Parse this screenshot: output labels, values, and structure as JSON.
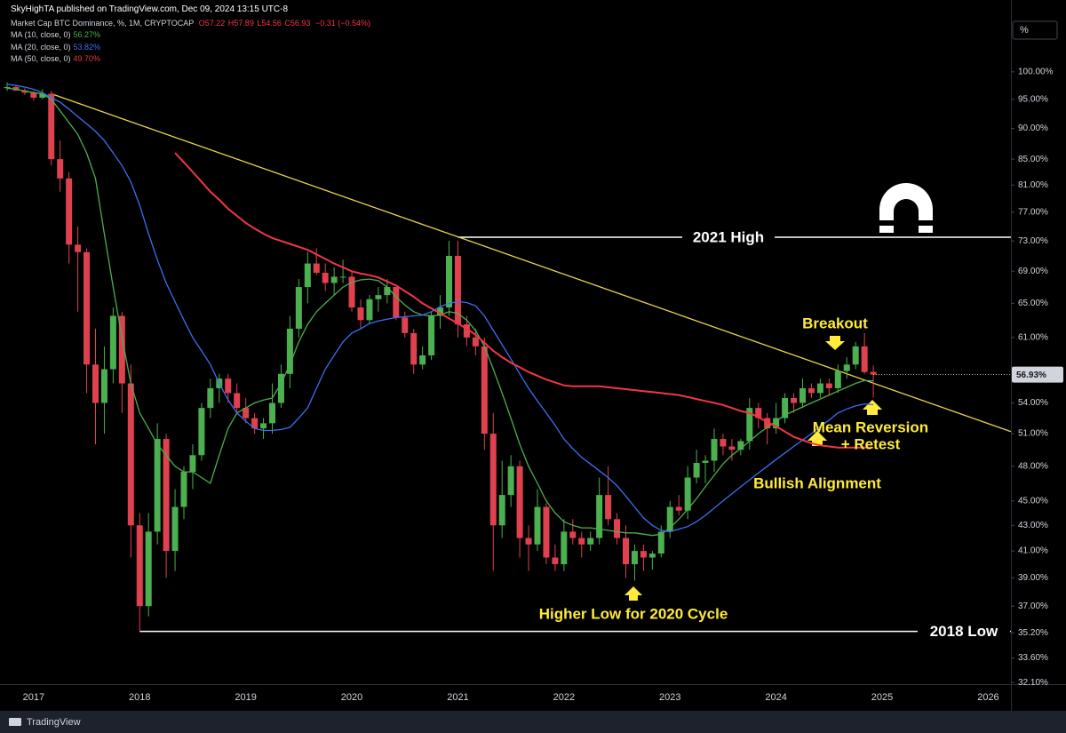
{
  "page": {
    "published_by": "SkyHighTA published on TradingView.com, Dec 09, 2024 13:15 UTC-8",
    "footer": "TradingView"
  },
  "chart_data": {
    "type": "candlestick",
    "symbol": "Market Cap BTC Dominance, %, 1M, CRYPTOCAP",
    "ohlc_labels": [
      "O57.22",
      "H57.89",
      "L54.56",
      "C56.93"
    ],
    "change_label": "−0.31 (−0.54%)",
    "axis_unit": "%",
    "last_price_label": "56.93%",
    "log_scale": true,
    "grid": false,
    "up_color": "#4caf50",
    "down_color": "#e0414f",
    "ylim": [
      32,
      111.5
    ],
    "yticks": [
      {
        "value": 32.1,
        "label": "32.10%"
      },
      {
        "value": 33.6,
        "label": "33.60%"
      },
      {
        "value": 35.2,
        "label": "35.20%"
      },
      {
        "value": 37,
        "label": "37.00%"
      },
      {
        "value": 39,
        "label": "39.00%"
      },
      {
        "value": 41,
        "label": "41.00%"
      },
      {
        "value": 43,
        "label": "43.00%"
      },
      {
        "value": 45,
        "label": "45.00%"
      },
      {
        "value": 48,
        "label": "48.00%"
      },
      {
        "value": 51,
        "label": "51.00%"
      },
      {
        "value": 54,
        "label": "54.00%"
      },
      {
        "value": 61,
        "label": "61.00%"
      },
      {
        "value": 65,
        "label": "65.00%"
      },
      {
        "value": 69,
        "label": "69.00%"
      },
      {
        "value": 73,
        "label": "73.00%"
      },
      {
        "value": 77,
        "label": "77.00%"
      },
      {
        "value": 81,
        "label": "81.00%"
      },
      {
        "value": 85,
        "label": "85.00%"
      },
      {
        "value": 90,
        "label": "90.00%"
      },
      {
        "value": 95,
        "label": "95.00%"
      },
      {
        "value": 100,
        "label": "100.00%"
      }
    ],
    "categories": [
      null,
      null,
      null,
      "2017",
      null,
      null,
      null,
      null,
      null,
      null,
      null,
      null,
      null,
      null,
      null,
      "2018",
      null,
      null,
      null,
      null,
      null,
      null,
      null,
      null,
      null,
      null,
      null,
      "2019",
      null,
      null,
      null,
      null,
      null,
      null,
      null,
      null,
      null,
      null,
      null,
      "2020",
      null,
      null,
      null,
      null,
      null,
      null,
      null,
      null,
      null,
      null,
      null,
      "2021",
      null,
      null,
      null,
      null,
      null,
      null,
      null,
      null,
      null,
      null,
      null,
      "2022",
      null,
      null,
      null,
      null,
      null,
      null,
      null,
      null,
      null,
      null,
      null,
      "2023",
      null,
      null,
      null,
      null,
      null,
      null,
      null,
      null,
      null,
      null,
      null,
      "2024",
      null,
      null,
      null,
      null,
      null,
      null,
      null,
      null,
      null,
      null,
      null,
      "2025",
      null,
      null,
      null,
      null,
      null,
      null,
      null,
      null,
      null,
      null,
      null,
      "2026",
      null,
      null
    ],
    "open": [
      97,
      97.2,
      96.6,
      96.2,
      95.3,
      96,
      85,
      82,
      72.5,
      71.5,
      58,
      54,
      57.5,
      63.5,
      56,
      43,
      37,
      42.5,
      50.5,
      41,
      44.5,
      47.5,
      49,
      53.5,
      55.5,
      56.5,
      55,
      53.5,
      52.5,
      51.5,
      52,
      54,
      57,
      62,
      67,
      70,
      68.8,
      67.5,
      68.3,
      68.3,
      64.5,
      63,
      65.5,
      66,
      67,
      63.3,
      61.5,
      58,
      59,
      63.5,
      64.5,
      71,
      62.5,
      61,
      60,
      51,
      43,
      45.5,
      48,
      42,
      41.5,
      44.5,
      40.5,
      40,
      42.5,
      42,
      41.5,
      42,
      45.5,
      43.5,
      42,
      40,
      41,
      40.5,
      40.8,
      42.5,
      44.5,
      44.2,
      47,
      48.3,
      48.5,
      50.5,
      49.8,
      49.5,
      50.3,
      53.5,
      52.5,
      51.5,
      52.5,
      54.5,
      54,
      55.5,
      55,
      56,
      55.5,
      57.3,
      58,
      60,
      57.22,
      null,
      null,
      null,
      null,
      null,
      null,
      null,
      null,
      null,
      null,
      null,
      null,
      null,
      null,
      null
    ],
    "high": [
      98,
      97.5,
      97,
      96.5,
      96.8,
      96.5,
      88,
      83,
      75,
      72,
      62,
      60,
      64.5,
      64,
      58,
      44,
      44,
      52,
      51,
      46,
      48,
      50,
      54,
      56.5,
      57,
      57,
      56,
      54.5,
      53,
      52.5,
      56,
      58,
      63.5,
      68,
      71.5,
      72,
      70,
      69.5,
      70.5,
      69,
      65.5,
      66,
      67,
      68,
      67,
      64,
      62,
      60,
      64,
      66,
      73,
      73,
      63.5,
      62,
      61,
      53,
      48.5,
      49,
      48.5,
      43,
      46,
      44.8,
      41.5,
      43.5,
      43.5,
      42.5,
      42.5,
      47,
      48,
      44,
      43,
      41.5,
      41.5,
      41,
      43,
      45,
      45.5,
      48,
      49.5,
      49,
      51.5,
      51,
      50.5,
      50.5,
      54.5,
      54,
      53,
      54,
      55,
      55,
      56.5,
      56,
      56.5,
      56.5,
      58,
      58.8,
      60.5,
      61.5,
      57.89,
      null,
      null,
      null,
      null,
      null,
      null,
      null,
      null,
      null,
      null,
      null,
      null,
      null,
      null,
      null
    ],
    "low": [
      96.5,
      96.5,
      95.8,
      94.8,
      95,
      84,
      80,
      70,
      64,
      55,
      50,
      51,
      56,
      53,
      40.5,
      35.3,
      36.3,
      41.5,
      39,
      39.5,
      43.5,
      46,
      48.5,
      52.5,
      54,
      54,
      53,
      52,
      51,
      50.5,
      51,
      53.5,
      55.5,
      61,
      65,
      68.5,
      66.5,
      66,
      67.5,
      64,
      62,
      62.5,
      64,
      65,
      63,
      61,
      57,
      57.5,
      58.5,
      62,
      63.5,
      61,
      60,
      59,
      49.5,
      39.5,
      42,
      44.5,
      40.5,
      39.5,
      41,
      40,
      39.5,
      39.5,
      41.5,
      40.5,
      41,
      41.5,
      43,
      41.5,
      39,
      38.8,
      39.5,
      39.6,
      40.5,
      42,
      43.8,
      43.5,
      46.5,
      46.5,
      47.5,
      49,
      48.5,
      49,
      49.5,
      51.5,
      50,
      51,
      52,
      53,
      53.5,
      54.5,
      54.5,
      54.8,
      55,
      56.5,
      57.5,
      57,
      54.56,
      null,
      null,
      null,
      null,
      null,
      null,
      null,
      null,
      null,
      null,
      null,
      null,
      null,
      null,
      null
    ],
    "close": [
      97.2,
      96.6,
      96.2,
      95.3,
      96,
      85,
      82,
      72.5,
      71.5,
      58,
      54,
      57.5,
      63.5,
      56,
      43,
      37,
      42.5,
      50.5,
      41,
      44.5,
      47.5,
      49,
      53.5,
      55.5,
      56.5,
      55,
      53.5,
      52.5,
      51.5,
      52,
      54,
      57,
      62,
      67,
      70,
      68.8,
      67.5,
      68.3,
      68.3,
      64.5,
      63,
      65.5,
      66,
      67,
      63.3,
      61.5,
      58,
      59,
      63.5,
      64.5,
      71,
      62.5,
      61,
      60,
      51,
      43,
      45.5,
      48,
      42,
      41.5,
      44.5,
      40.5,
      40,
      42.5,
      42,
      41.5,
      42,
      45.5,
      43.5,
      42,
      40,
      41,
      40.5,
      40.8,
      42.5,
      44.5,
      44.2,
      47,
      48.3,
      48.5,
      50.5,
      49.8,
      49.5,
      50.3,
      53.5,
      52.5,
      51.5,
      52.5,
      54.5,
      54,
      55.5,
      55,
      56,
      55.5,
      57.3,
      58,
      60,
      57.2,
      56.93,
      null,
      null,
      null,
      null,
      null,
      null,
      null,
      null,
      null,
      null,
      null,
      null,
      null,
      null,
      null
    ],
    "series": [
      {
        "name": "MA (10, close, 0)",
        "color": "#4caf50",
        "last_label": "56.27%",
        "values": [
          97,
          96.8,
          96.5,
          96.2,
          96,
          95,
          93,
          91,
          89,
          86,
          82,
          74,
          67,
          61,
          56,
          53,
          51.5,
          50,
          49,
          48,
          47.5,
          47.5,
          47,
          46.5,
          49,
          51.5,
          53,
          53.5,
          54,
          54.3,
          54.5,
          56,
          58,
          60.5,
          62.5,
          64,
          65,
          66,
          67,
          67.6,
          67.9,
          68,
          67.8,
          67,
          65.8,
          64.8,
          64,
          63.6,
          63.5,
          63.6,
          64,
          63.8,
          63,
          61.8,
          60,
          57.5,
          55,
          52.5,
          50,
          48,
          46.5,
          45,
          44,
          43.3,
          43,
          42.8,
          42.8,
          42.7,
          42.6,
          42.5,
          42.4,
          42.4,
          42.3,
          42.2,
          42.3,
          42.8,
          43.5,
          44.3,
          45.2,
          46.2,
          47.2,
          48.2,
          49,
          49.6,
          50.3,
          51,
          51.6,
          52.2,
          52.8,
          53.2,
          53.6,
          54,
          54.4,
          54.8,
          55.2,
          55.6,
          56,
          56.3,
          56.27,
          null,
          null,
          null,
          null,
          null,
          null,
          null,
          null,
          null,
          null,
          null,
          null,
          null,
          null,
          null
        ]
      },
      {
        "name": "MA (20, close, 0)",
        "color": "#3d6ff2",
        "last_label": "53.82%",
        "values": [
          97.7,
          97.5,
          97.2,
          96.8,
          96.2,
          95.3,
          94.5,
          93.3,
          92,
          90.8,
          89.5,
          88,
          86,
          84,
          81.5,
          78,
          74,
          70.5,
          67.5,
          65.2,
          63,
          61,
          59.5,
          58,
          56,
          54.3,
          53,
          52.2,
          51.5,
          51.3,
          51.3,
          51.4,
          51.6,
          52.5,
          53.5,
          55.5,
          57.5,
          59,
          60.5,
          61.5,
          62,
          62.6,
          62.9,
          63.1,
          63.3,
          63.4,
          63.5,
          63.6,
          64,
          64.6,
          65,
          65.2,
          65.1,
          64.7,
          63.5,
          61.8,
          60.2,
          58.6,
          57,
          55.5,
          54.2,
          53,
          51.8,
          50.5,
          49.6,
          48.8,
          48.2,
          47.6,
          47,
          46.3,
          45.4,
          44.5,
          43.6,
          43,
          42.6,
          42.5,
          42.7,
          42.9,
          43.3,
          43.8,
          44.4,
          45,
          45.6,
          46.2,
          46.8,
          47.4,
          48,
          48.6,
          49.2,
          49.8,
          50.4,
          51,
          51.7,
          52.3,
          53,
          53.4,
          53.7,
          53.9,
          53.82,
          null,
          null,
          null,
          null,
          null,
          null,
          null,
          null,
          null,
          null,
          null,
          null,
          null,
          null,
          null
        ]
      },
      {
        "name": "MA (50, close, 0)",
        "color": "#f23645",
        "last_label": "49.70%",
        "values": [
          null,
          null,
          null,
          null,
          null,
          null,
          null,
          null,
          null,
          null,
          null,
          null,
          null,
          null,
          null,
          null,
          null,
          null,
          null,
          86,
          84.5,
          83,
          81.5,
          80,
          78.8,
          77.5,
          76.5,
          75.5,
          74.7,
          74,
          73.4,
          73,
          72.6,
          72.2,
          71.8,
          71.2,
          70.6,
          70,
          69.5,
          69,
          68.7,
          68.5,
          68.2,
          67.7,
          67.2,
          66.5,
          65.8,
          65,
          64.4,
          63.8,
          63.2,
          62.6,
          62,
          61.3,
          60.4,
          59.5,
          58.8,
          58.2,
          57.7,
          57.2,
          56.8,
          56.4,
          56.1,
          55.8,
          55.7,
          55.7,
          55.7,
          55.7,
          55.6,
          55.5,
          55.4,
          55.3,
          55.2,
          55.1,
          55,
          54.9,
          54.8,
          54.6,
          54.4,
          54.2,
          54,
          53.8,
          53.5,
          53.2,
          53,
          52.6,
          52.1,
          51.7,
          51.2,
          50.7,
          50.4,
          50.1,
          49.9,
          49.8,
          49.7,
          49.7,
          49.7,
          49.7,
          49.7,
          null,
          null,
          null,
          null,
          null,
          null,
          null,
          null,
          null,
          null,
          null,
          null,
          null,
          null,
          null
        ]
      }
    ],
    "trendline": {
      "color": "#e8d44d",
      "values": [
        96,
        51.2
      ]
    },
    "levels": [
      {
        "label": "2021 High",
        "value": 73.5
      },
      {
        "label": "2018 Low",
        "value": 35.3
      }
    ],
    "annotations": [
      "Breakout",
      "Mean Reversion",
      "+ Retest",
      "Bullish Alignment",
      "Higher Low for 2020 Cycle"
    ]
  }
}
